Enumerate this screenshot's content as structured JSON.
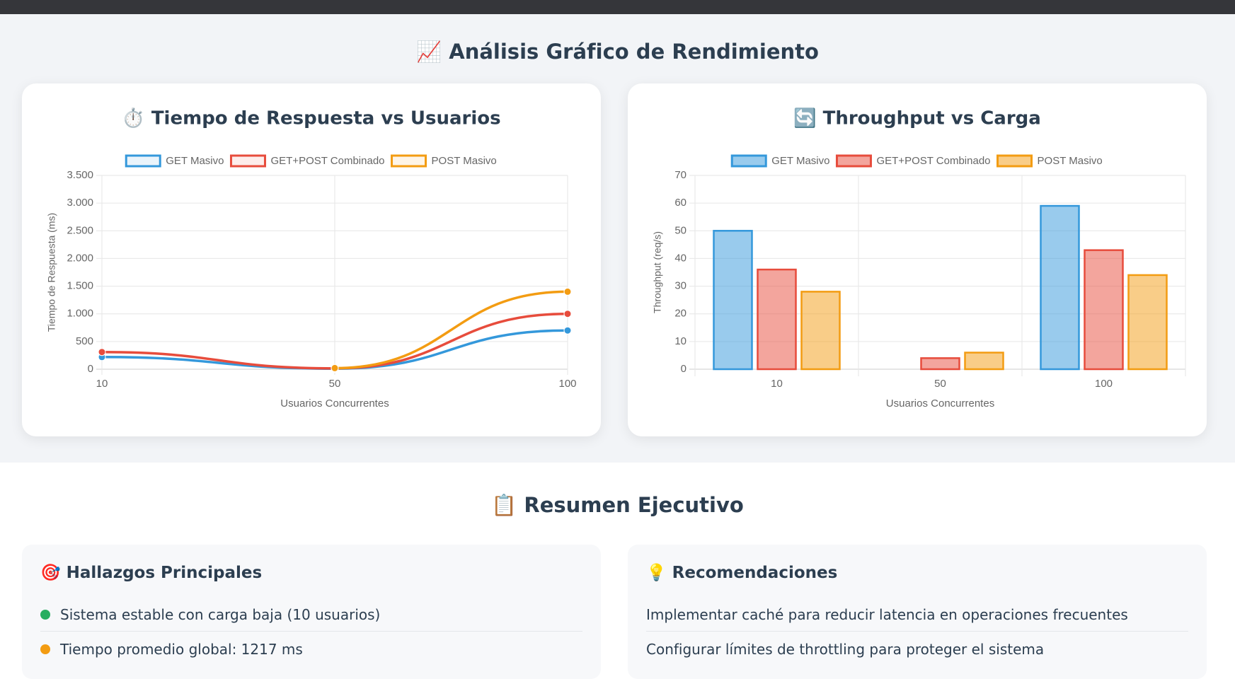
{
  "charts_section": {
    "title": "📈 Análisis Gráfico de Rendimiento"
  },
  "chart_data": [
    {
      "type": "line",
      "title": "⏱️ Tiempo de Respuesta vs Usuarios",
      "x_label": "Usuarios Concurrentes",
      "y_label": "Tiempo de Respuesta (ms)",
      "categories": [
        "10",
        "50",
        "100"
      ],
      "series": [
        {
          "name": "GET Masivo",
          "color": "#3498db",
          "values": [
            220,
            10,
            700
          ]
        },
        {
          "name": "GET+POST Combinado",
          "color": "#e74c3c",
          "values": [
            310,
            15,
            1000
          ]
        },
        {
          "name": "POST Masivo",
          "color": "#f39c12",
          "values": [
            null,
            20,
            1400
          ]
        }
      ],
      "ylim": [
        0,
        3500
      ],
      "yticks": [
        0,
        500,
        {
          "value": 1000,
          "label": "1.000"
        },
        {
          "value": 1500,
          "label": "1.500"
        },
        {
          "value": 2000,
          "label": "2.000"
        },
        {
          "value": 2500,
          "label": "2.500"
        },
        {
          "value": 3000,
          "label": "3.000"
        },
        {
          "value": 3500,
          "label": "3.500"
        }
      ],
      "grid": true,
      "legend": "top"
    },
    {
      "type": "bar",
      "title": "🔄 Throughput vs Carga",
      "x_label": "Usuarios Concurrentes",
      "y_label": "Throughput (req/s)",
      "categories": [
        "10",
        "50",
        "100"
      ],
      "series": [
        {
          "name": "GET Masivo",
          "color": "#3498db",
          "values": [
            50,
            null,
            59
          ]
        },
        {
          "name": "GET+POST Combinado",
          "color": "#e74c3c",
          "values": [
            36,
            4,
            43
          ]
        },
        {
          "name": "POST Masivo",
          "color": "#f39c12",
          "values": [
            28,
            6,
            34
          ]
        }
      ],
      "ylim": [
        0,
        70
      ],
      "yticks": [
        0,
        10,
        20,
        30,
        40,
        50,
        60,
        70
      ],
      "grid": true,
      "legend": "top"
    }
  ],
  "summary": {
    "title": "📋 Resumen Ejecutivo",
    "findings": {
      "title": "🎯 Hallazgos Principales",
      "items": [
        "Sistema estable con carga baja (10 usuarios)",
        "Tiempo promedio global: 1217 ms"
      ]
    },
    "recommendations": {
      "title": "💡 Recomendaciones",
      "items": [
        "Implementar caché para reducir latencia en operaciones frecuentes",
        "Configurar límites de throttling para proteger el sistema"
      ]
    }
  }
}
